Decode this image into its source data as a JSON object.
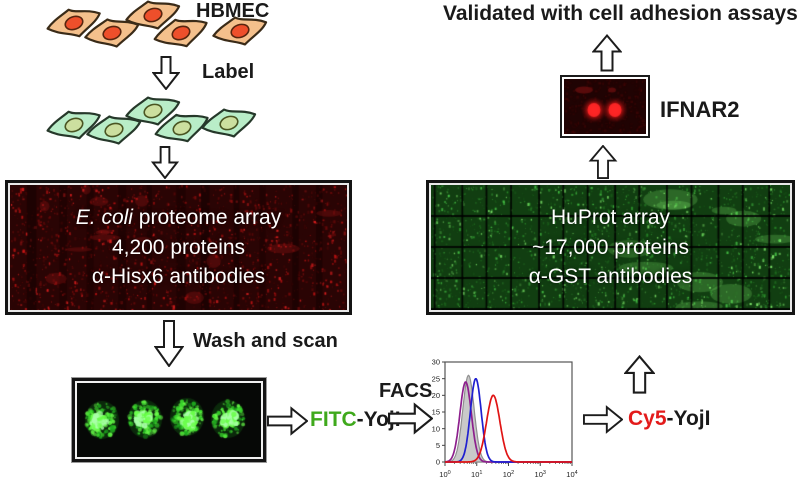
{
  "colors": {
    "text": "#1a1a1a",
    "accent_green": "#3fa91c",
    "accent_red": "#e31b1b",
    "cell_orange_body": "#f4c08c",
    "cell_orange_nucleus": "#ee4f2b",
    "cell_green_body": "#b9edc8",
    "cell_green_nucleus": "#ccdf9f",
    "array_red_base": "#2a0404",
    "array_red_speckles": [
      "#5c0909",
      "#8f0e0e",
      "#c31313",
      "#ee2222"
    ],
    "array_green_base": "#113e11",
    "array_green_speckles": [
      "#1d671d",
      "#2f9e2f",
      "#4cd34c",
      "#8dff76"
    ],
    "spot_greens": [
      "#1fae1f",
      "#3ee02e",
      "#6aff4a",
      "#aaffaa"
    ],
    "blot_base": "#200303",
    "blot_red": "#ff2020"
  },
  "left_flow": {
    "cells_top_label": "HBMEC",
    "step1_label": "Label",
    "ecoli_panel": {
      "line1_italic": "E. coli",
      "line1_rest": " proteome array",
      "line2": "4,200 proteins",
      "line3": "α-Hisx6 antibodies"
    },
    "step2_label": "Wash and scan"
  },
  "bottom_flow": {
    "fitc_tag": "FITC",
    "fitc_rest": "-YojI",
    "facs_label": "FACS",
    "cy5_tag": "Cy5",
    "cy5_rest": "-YojI"
  },
  "right_flow": {
    "huprot_panel": {
      "line1": "HuProt array",
      "line2": "~17,000 proteins",
      "line3": "α-GST antibodies"
    },
    "ifnar2_label": "IFNAR2",
    "validated_label": "Validated with cell adhesion assays"
  },
  "chart_data": {
    "type": "line",
    "title": "",
    "xlabel": "",
    "ylabel": "",
    "x_scale": "log10",
    "x_decades": [
      0,
      1,
      2,
      3,
      4
    ],
    "ylim": [
      0,
      30
    ],
    "y_ticks": [
      0,
      5,
      10,
      15,
      20,
      25,
      30
    ],
    "legend": "none",
    "series": [
      {
        "name": "control-gray-filled",
        "color": "#909090",
        "fill": "#c9c9c9",
        "peak_log10_x": 0.74,
        "peak_y": 26,
        "sigma_decades": 0.18
      },
      {
        "name": "purple-curve",
        "color": "#8d1f8d",
        "peak_log10_x": 0.65,
        "peak_y": 24,
        "sigma_decades": 0.18
      },
      {
        "name": "blue-curve",
        "color": "#1f1fd0",
        "peak_log10_x": 0.97,
        "peak_y": 25,
        "sigma_decades": 0.17
      },
      {
        "name": "red-curve",
        "color": "#e01414",
        "peak_log10_x": 1.52,
        "peak_y": 20,
        "sigma_decades": 0.21
      }
    ]
  }
}
